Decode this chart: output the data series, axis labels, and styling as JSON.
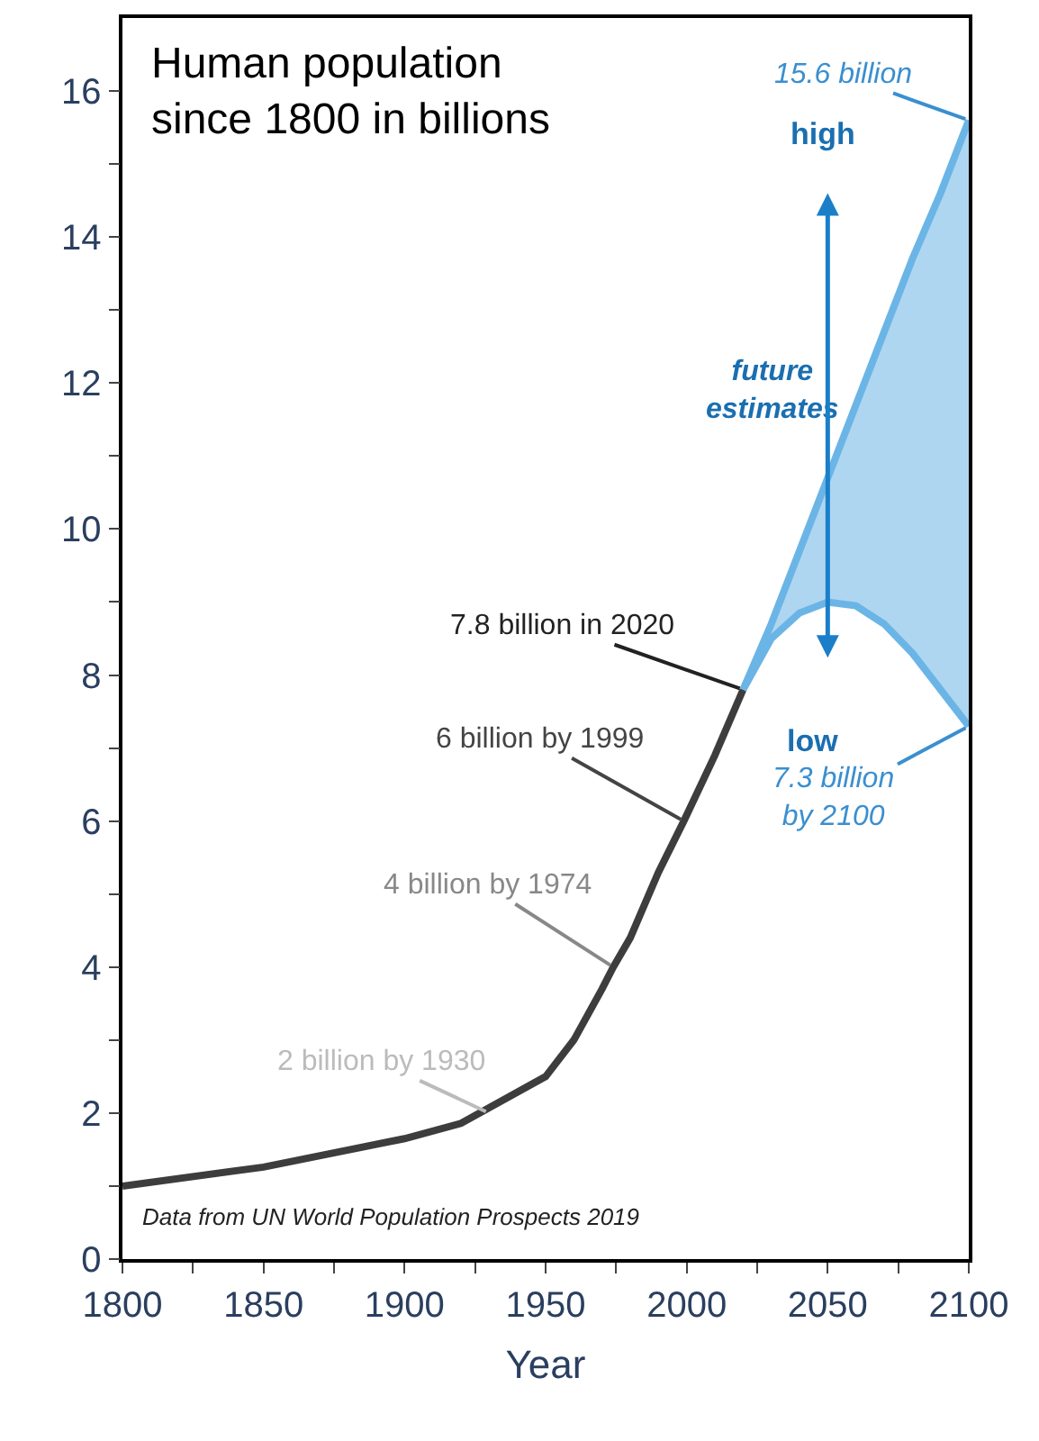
{
  "chart_data": {
    "type": "line",
    "title": "Human population\nsince 1800 in billions",
    "xlabel": "Year",
    "xlim": [
      1800,
      2100
    ],
    "ylim": [
      0,
      17
    ],
    "xticks": [
      1800,
      {
        "value": 1825,
        "label": null
      },
      1850,
      {
        "value": 1875,
        "label": null
      },
      1900,
      {
        "value": 1925,
        "label": null
      },
      1950,
      {
        "value": 1975,
        "label": null
      },
      2000,
      {
        "value": 2025,
        "label": null
      },
      2050,
      {
        "value": 2075,
        "label": null
      },
      2100
    ],
    "yticks": [
      0,
      {
        "value": 1,
        "label": null
      },
      2,
      {
        "value": 3,
        "label": null
      },
      4,
      {
        "value": 5,
        "label": null
      },
      6,
      {
        "value": 7,
        "label": null
      },
      8,
      {
        "value": 9,
        "label": null
      },
      10,
      {
        "value": 11,
        "label": null
      },
      12,
      {
        "value": 13,
        "label": null
      },
      14,
      {
        "value": 15,
        "label": null
      },
      16
    ],
    "marker": "none",
    "line_style": "solid",
    "series": [
      {
        "color": "#3d3d3d",
        "x": [
          1800,
          1850,
          1900,
          1920,
          1950,
          1960,
          1970,
          1974,
          1980,
          1990,
          1999,
          2010,
          2020
        ],
        "values": [
          1.0,
          1.26,
          1.65,
          1.86,
          2.5,
          3.0,
          3.7,
          4.0,
          4.4,
          5.3,
          6.0,
          6.9,
          7.8
        ]
      },
      {
        "color": "#6bb5e6",
        "x": [
          2020,
          2030,
          2040,
          2050,
          2060,
          2070,
          2080,
          2090,
          2100
        ],
        "values": [
          7.8,
          8.7,
          9.7,
          10.7,
          11.7,
          12.7,
          13.7,
          14.6,
          15.6
        ],
        "lower": [
          7.8,
          8.5,
          8.85,
          9.0,
          8.95,
          8.7,
          8.3,
          7.8,
          7.3
        ],
        "upper": [
          7.8,
          8.7,
          9.7,
          10.7,
          11.7,
          12.7,
          13.7,
          14.6,
          15.6
        ]
      },
      {
        "color": "#6bb5e6",
        "x": [
          2020,
          2030,
          2040,
          2050,
          2060,
          2070,
          2080,
          2090,
          2100
        ],
        "values": [
          7.8,
          8.5,
          8.85,
          9.0,
          8.95,
          8.7,
          8.3,
          7.8,
          7.3
        ]
      }
    ],
    "annotations": [
      {
        "text": "7.8 billion in 2020",
        "x": 2020,
        "y": 7.8
      },
      {
        "text": "6 billion by 1999",
        "x": 1999,
        "y": 6.0
      },
      {
        "text": "4 billion by 1974",
        "x": 1974,
        "y": 4.0
      },
      {
        "text": "2 billion by 1930",
        "x": 1930,
        "y": 2.0
      },
      {
        "text": "15.6 billion",
        "x": 2100,
        "y": 15.6
      },
      "high",
      "future\nestimates",
      "low",
      {
        "text": "7.3 billion\nby 2100",
        "x": 2100,
        "y": 7.3
      },
      "Data from UN World Population Prospects 2019"
    ]
  }
}
